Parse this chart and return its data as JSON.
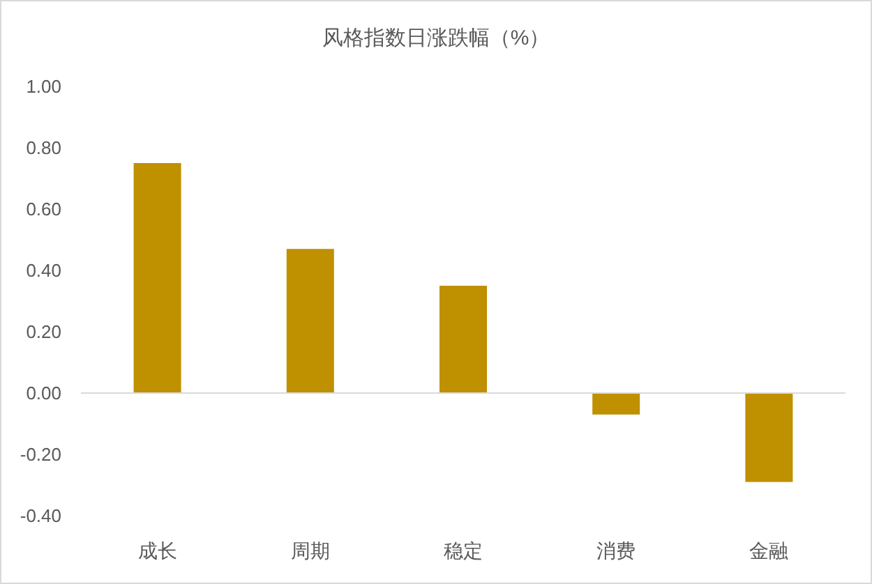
{
  "chart_data": {
    "type": "bar",
    "title": "风格指数日涨跌幅（%）",
    "categories": [
      "成长",
      "周期",
      "稳定",
      "消费",
      "金融"
    ],
    "values": [
      0.75,
      0.47,
      0.35,
      -0.07,
      -0.29
    ],
    "color": "#bf9000",
    "ylim": [
      -0.4,
      1.0
    ],
    "yticks": [
      {
        "value": -0.4,
        "label": "-0.40"
      },
      {
        "value": -0.2,
        "label": "-0.20"
      },
      {
        "value": 0,
        "label": "0.00"
      },
      {
        "value": 0.2,
        "label": "0.20"
      },
      {
        "value": 0.4,
        "label": "0.40"
      },
      {
        "value": 0.6,
        "label": "0.60"
      },
      {
        "value": 0.8,
        "label": "0.80"
      },
      {
        "value": 1.0,
        "label": "1.00"
      }
    ]
  }
}
